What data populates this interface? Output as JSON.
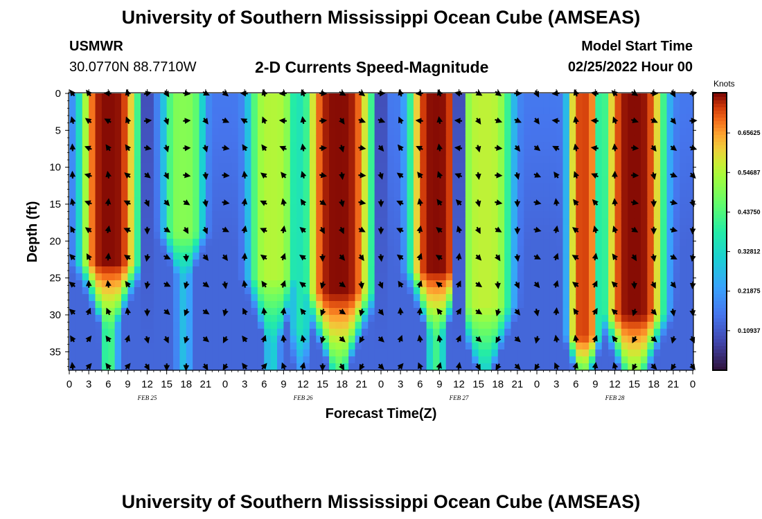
{
  "header": {
    "title_top": "University of Southern Mississippi Ocean Cube (AMSEAS)",
    "title_bottom": "University of Southern Mississippi Ocean Cube (AMSEAS)",
    "station": "USMWR",
    "location": "30.0770N  88.7710W",
    "plot_title": "2-D Currents Speed-Magnitude",
    "model_start_label": "Model Start Time",
    "model_start_value": "02/25/2022 Hour 00"
  },
  "chart_data": {
    "type": "heatmap",
    "title": "2-D Currents Speed-Magnitude",
    "xlabel": "Forecast Time(Z)",
    "ylabel": "Depth (ft)",
    "x_tick_hours": [
      0,
      3,
      6,
      9,
      12,
      15,
      18,
      21,
      24,
      27,
      30,
      33,
      36,
      39,
      42,
      45,
      48,
      51,
      54,
      57,
      60,
      63,
      66,
      69,
      72,
      75,
      78,
      81,
      84,
      87,
      90,
      93,
      96
    ],
    "x_tick_labels": [
      "0",
      "3",
      "6",
      "9",
      "12",
      "15",
      "18",
      "21",
      "0",
      "3",
      "6",
      "9",
      "12",
      "15",
      "18",
      "21",
      "0",
      "3",
      "6",
      "9",
      "12",
      "15",
      "18",
      "21",
      "0",
      "3",
      "6",
      "9",
      "12",
      "15",
      "18",
      "21",
      "0"
    ],
    "xlim": [
      0,
      96
    ],
    "date_labels": [
      {
        "hour": 12,
        "text": "FEB 25"
      },
      {
        "hour": 36,
        "text": "FEB 26"
      },
      {
        "hour": 60,
        "text": "FEB 27"
      },
      {
        "hour": 84,
        "text": "FEB 28"
      }
    ],
    "y_ticks": [
      0,
      5,
      10,
      15,
      20,
      25,
      30,
      35
    ],
    "y_tick_labels": [
      "0",
      "5",
      "10",
      "15",
      "20",
      "25",
      "30",
      "35"
    ],
    "ylim": [
      0,
      37.5
    ],
    "y_inverted": true,
    "colorbar": {
      "label": "Knots",
      "ticks": [
        0.65625,
        0.546875,
        0.4375,
        0.328125,
        0.21875,
        0.109375
      ],
      "tick_labels": [
        "0.65625",
        "0.54687",
        "0.43750",
        "0.32812",
        "0.21875",
        "0.10937"
      ],
      "range": [
        0,
        0.765625
      ]
    },
    "speed_bands": [
      {
        "center_hour": 6.2,
        "half_width": 3.6,
        "peak": 0.76,
        "max_depth": 23,
        "taper": 9
      },
      {
        "center_hour": 17.6,
        "half_width": 2.2,
        "peak": 0.5,
        "max_depth": 19,
        "taper": 6
      },
      {
        "center_hour": 31.3,
        "half_width": 2.8,
        "peak": 0.55,
        "max_depth": 25,
        "taper": 9
      },
      {
        "center_hour": 35.6,
        "half_width": 0.5,
        "peak": 0.36,
        "max_depth": 32,
        "taper": 6
      },
      {
        "center_hour": 41.5,
        "half_width": 4.3,
        "peak": 0.76,
        "max_depth": 27,
        "taper": 11
      },
      {
        "center_hour": 56.5,
        "half_width": 3.2,
        "peak": 0.76,
        "max_depth": 24,
        "taper": 9
      },
      {
        "center_hour": 64.0,
        "half_width": 3.3,
        "peak": 0.56,
        "max_depth": 29,
        "taper": 9
      },
      {
        "center_hour": 79.2,
        "half_width": 1.5,
        "peak": 0.72,
        "max_depth": 33,
        "taper": 6
      },
      {
        "center_hour": 87.0,
        "half_width": 3.8,
        "peak": 0.76,
        "max_depth": 30,
        "taper": 10
      }
    ],
    "slack_hours": [
      12,
      48,
      60
    ],
    "arrow_hours": [
      0.5,
      3,
      6,
      9,
      12,
      15,
      18,
      21,
      24,
      27,
      30,
      33,
      36,
      39,
      42,
      45,
      48,
      51,
      54,
      57,
      60,
      63,
      66,
      69,
      72,
      75,
      78,
      81,
      84,
      87,
      90,
      93,
      96
    ],
    "arrow_depths": [
      0,
      3.7,
      7.4,
      11.1,
      14.8,
      18.5,
      22.2,
      25.9,
      29.6,
      33.3,
      37
    ]
  }
}
